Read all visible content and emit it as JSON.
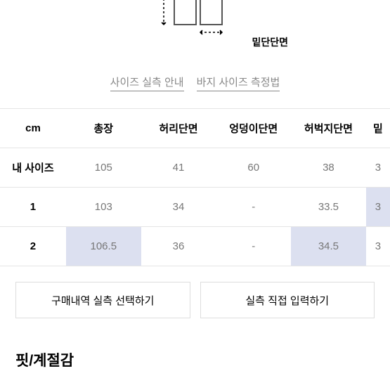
{
  "diagram": {
    "hem_label": "밑단단면",
    "stroke_color": "#555555",
    "arrow_dash": "3,3"
  },
  "guide_links": {
    "size_guide": "사이즈 실측 안내",
    "measure_guide": "바지 사이즈 측정법"
  },
  "table": {
    "unit_label": "cm",
    "columns": [
      "총장",
      "허리단면",
      "엉덩이단면",
      "허벅지단면",
      "밑"
    ],
    "rows": [
      {
        "label": "내 사이즈",
        "values": [
          "105",
          "41",
          "60",
          "38",
          "3"
        ],
        "highlights": [
          false,
          false,
          false,
          false,
          false
        ]
      },
      {
        "label": "1",
        "values": [
          "103",
          "34",
          "-",
          "33.5",
          "3"
        ],
        "highlights": [
          false,
          false,
          false,
          false,
          true
        ]
      },
      {
        "label": "2",
        "values": [
          "106.5",
          "36",
          "-",
          "34.5",
          "3"
        ],
        "highlights": [
          true,
          false,
          false,
          true,
          false
        ]
      }
    ],
    "highlight_color": "#dce0f0",
    "border_color": "#e5e5e5",
    "header_color": "#000000",
    "cell_color": "#777777"
  },
  "buttons": {
    "select_history": "구매내역 실측 선택하기",
    "direct_input": "실측 직접 입력하기"
  },
  "section": {
    "fit_season_title": "핏/계절감"
  }
}
